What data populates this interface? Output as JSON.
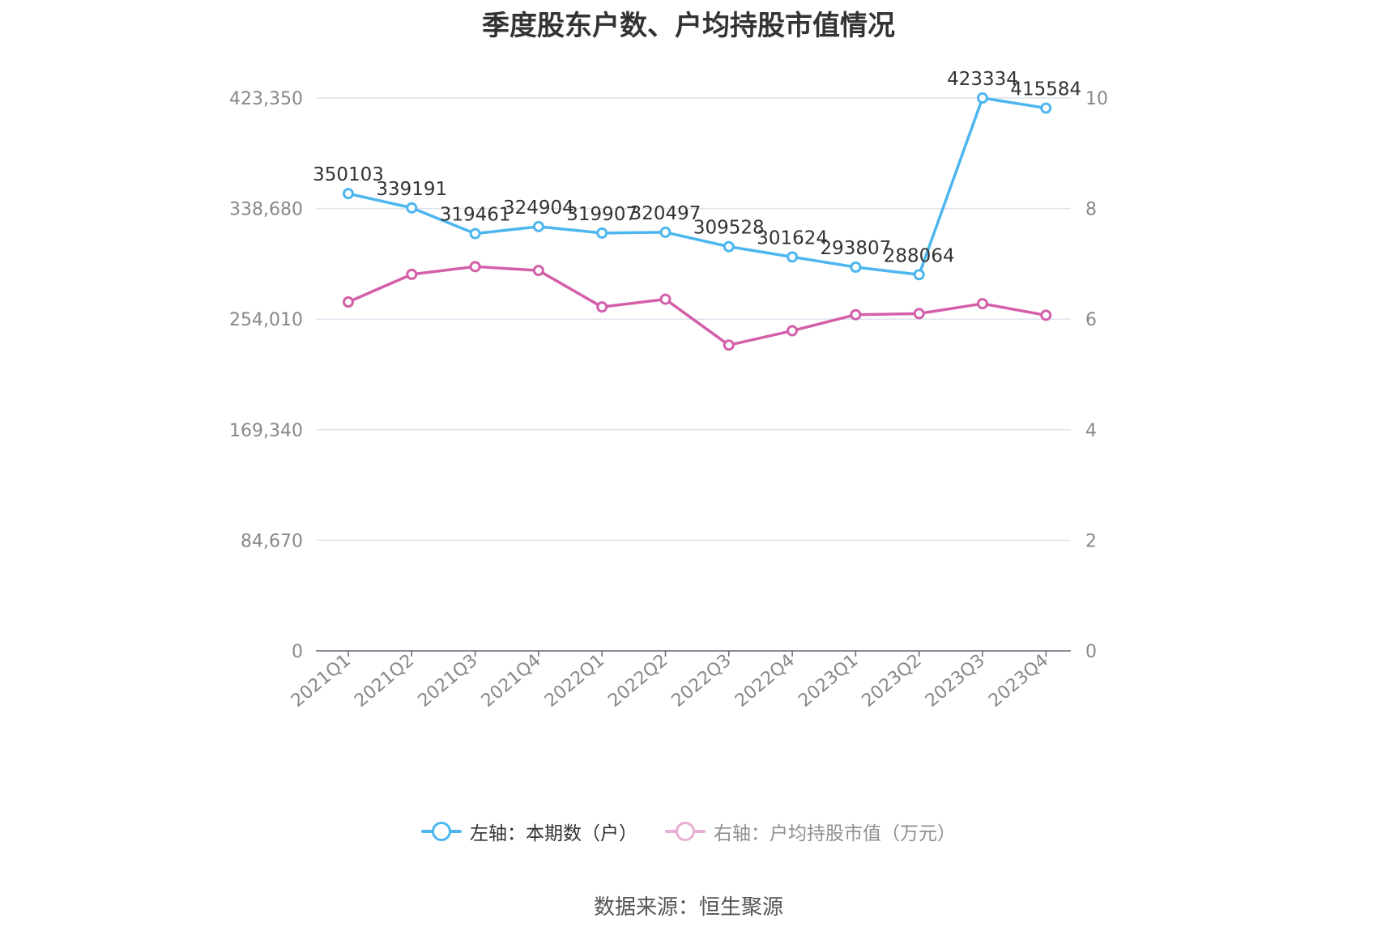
{
  "title": "季度股东户数、户均持股市值情况",
  "source": "数据来源：恒生聚源",
  "colors": {
    "left": "#4db6ef",
    "right": "#d35fa9",
    "grid": "#e0e3ee",
    "axis": "#666677"
  },
  "chart_data": {
    "type": "line",
    "categories": [
      "2021Q1",
      "2021Q2",
      "2021Q3",
      "2021Q4",
      "2022Q1",
      "2022Q2",
      "2022Q3",
      "2022Q4",
      "2023Q1",
      "2023Q2",
      "2023Q3",
      "2023Q4"
    ],
    "left_axis": {
      "min": 0,
      "max": 423350,
      "ticks": [
        "0",
        "84,670",
        "169,340",
        "254,010",
        "338,680",
        "423,350"
      ],
      "tick_values": [
        0,
        84670,
        169340,
        254010,
        338680,
        423350
      ]
    },
    "right_axis": {
      "min": 0,
      "max": 10,
      "ticks": [
        "0",
        "2",
        "4",
        "6",
        "8",
        "10"
      ],
      "tick_values": [
        0,
        2,
        4,
        6,
        8,
        10
      ]
    },
    "series": [
      {
        "name": "左轴：本期数（户）",
        "axis": "left",
        "color": "#4db6ef",
        "show_labels": true,
        "values": [
          350103,
          339191,
          319461,
          324904,
          319907,
          320497,
          309528,
          301624,
          293807,
          288064,
          423334,
          415584
        ],
        "labels": [
          "350103",
          "339191",
          "319461",
          "324904",
          "319907",
          "320497",
          "309528",
          "301624",
          "293807",
          "288064",
          "423334",
          "415584"
        ]
      },
      {
        "name": "右轴：户均持股市值（万元）",
        "axis": "right",
        "color": "#d35fa9",
        "show_labels": false,
        "values": [
          6.31,
          6.81,
          6.95,
          6.88,
          6.22,
          6.36,
          5.53,
          5.79,
          6.08,
          6.1,
          6.28,
          6.07
        ]
      }
    ],
    "grid": true,
    "legend_position": "bottom"
  }
}
